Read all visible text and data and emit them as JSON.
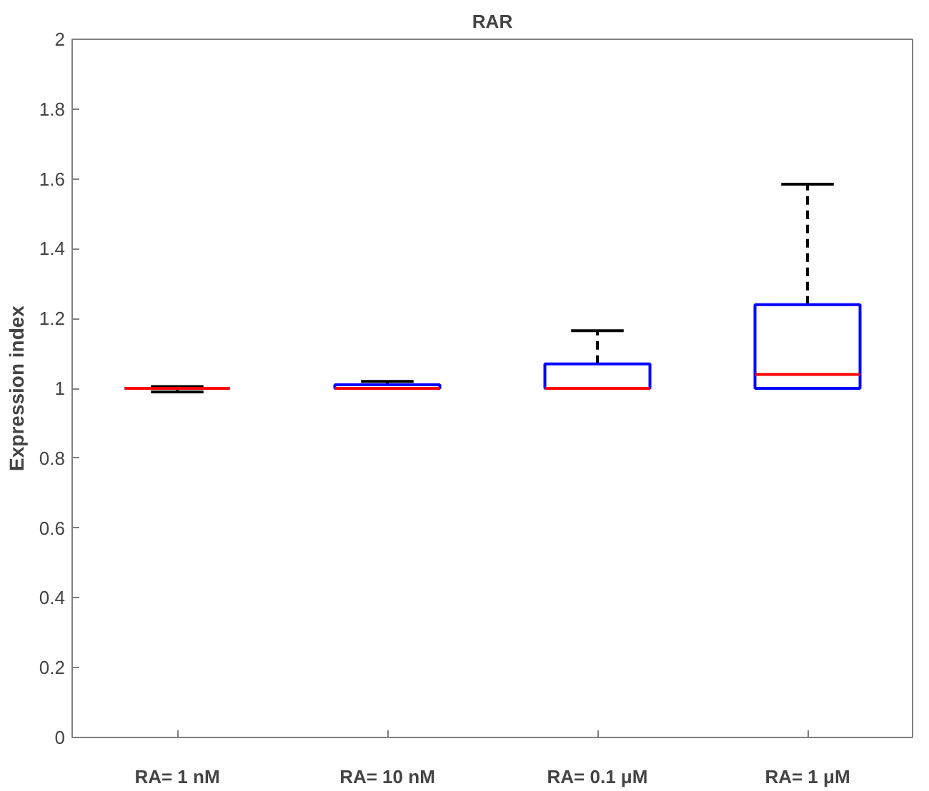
{
  "chart_data": {
    "type": "box",
    "title": "RAR",
    "ylabel": "Expression index",
    "categories": [
      "RA= 1 nM",
      "RA= 10 nM",
      "RA= 0.1 μM",
      "RA= 1 μM"
    ],
    "boxes": [
      {
        "low": 0.99,
        "q1": 1.0,
        "median": 1.0,
        "q3": 1.0,
        "high": 1.005
      },
      {
        "low": 1.0,
        "q1": 1.0,
        "median": 1.0,
        "q3": 1.01,
        "high": 1.02
      },
      {
        "low": 1.0,
        "q1": 1.0,
        "median": 1.0,
        "q3": 1.07,
        "high": 1.165
      },
      {
        "low": 1.0,
        "q1": 1.0,
        "median": 1.04,
        "q3": 1.24,
        "high": 1.585
      }
    ],
    "color": "#0000ff",
    "ylim": [
      0,
      2
    ],
    "yticks": [
      0,
      0.2,
      0.4,
      0.6,
      0.8,
      1,
      1.2,
      1.4,
      1.6,
      1.8,
      2
    ],
    "grid": false
  }
}
